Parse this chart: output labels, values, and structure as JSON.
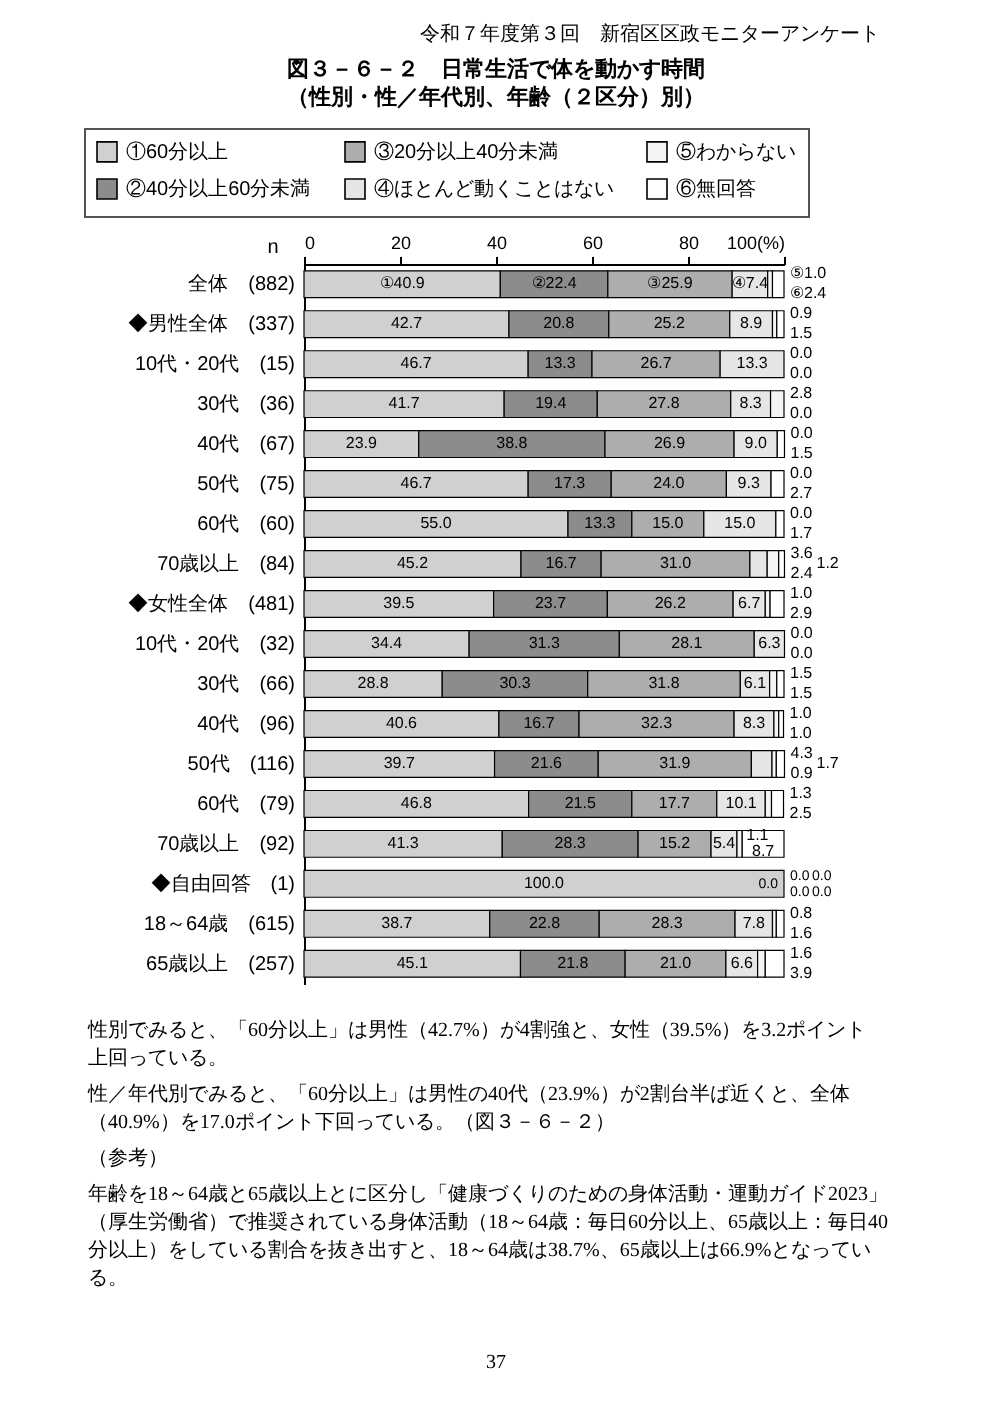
{
  "chart_data": {
    "type": "bar",
    "orientation": "horizontal",
    "stacked": true,
    "title": "図３－６－２　日常生活で体を動かす時間",
    "subtitle": "（性別・性／年代別、年齢（２区分）別）",
    "ylabel": "n",
    "categories": [
      "全体　(882)",
      "◆男性全体　(337)",
      "10代・20代　(15)",
      "30代　(36)",
      "40代　(67)",
      "50代　(75)",
      "60代　(60)",
      "70歳以上　(84)",
      "◆女性全体　(481)",
      "10代・20代　(32)",
      "30代　(66)",
      "40代　(96)",
      "50代　(116)",
      "60代　(79)",
      "70歳以上　(92)",
      "◆自由回答　(1)",
      "18～64歳　(615)",
      "65歳以上　(257)"
    ],
    "series": [
      {
        "name": "①60分以上",
        "color": "#d0d0d0",
        "values": [
          40.9,
          42.7,
          46.7,
          41.7,
          23.9,
          46.7,
          55.0,
          45.2,
          39.5,
          34.4,
          28.8,
          40.6,
          39.7,
          46.8,
          41.3,
          100.0,
          38.7,
          45.1
        ],
        "value_labels": [
          "①40.9",
          "42.7",
          "46.7",
          "41.7",
          "23.9",
          "46.7",
          "55.0",
          "45.2",
          "39.5",
          "34.4",
          "28.8",
          "40.6",
          "39.7",
          "46.8",
          "41.3",
          "100.0",
          "38.7",
          "45.1"
        ]
      },
      {
        "name": "②40分以上60分未満",
        "color": "#8c8c8c",
        "values": [
          22.4,
          20.8,
          13.3,
          19.4,
          38.8,
          17.3,
          13.3,
          16.7,
          23.7,
          31.3,
          30.3,
          16.7,
          21.6,
          21.5,
          28.3,
          0.0,
          22.8,
          21.8
        ],
        "value_labels": [
          "②22.4",
          "20.8",
          "13.3",
          "19.4",
          "38.8",
          "17.3",
          "13.3",
          "16.7",
          "23.7",
          "31.3",
          "30.3",
          "16.7",
          "21.6",
          "21.5",
          "28.3",
          "0.0",
          "22.8",
          "21.8"
        ]
      },
      {
        "name": "③20分以上40分未満",
        "color": "#adadad",
        "values": [
          25.9,
          25.2,
          26.7,
          27.8,
          26.9,
          24.0,
          15.0,
          31.0,
          26.2,
          28.1,
          31.8,
          32.3,
          31.9,
          17.7,
          15.2,
          0.0,
          28.3,
          21.0
        ],
        "value_labels": [
          "③25.9",
          "25.2",
          "26.7",
          "27.8",
          "26.9",
          "24.0",
          "15.0",
          "31.0",
          "26.2",
          "28.1",
          "31.8",
          "32.3",
          "31.9",
          "17.7",
          "15.2",
          "0.0",
          "28.3",
          "21.0"
        ]
      },
      {
        "name": "④ほとんど動くことはない",
        "color": "#e6e6e6",
        "values": [
          7.4,
          8.9,
          13.3,
          8.3,
          9.0,
          9.3,
          15.0,
          3.6,
          6.7,
          6.3,
          6.1,
          8.3,
          4.3,
          10.1,
          5.4,
          0.0,
          7.8,
          6.6
        ],
        "value_labels": [
          "④7.4",
          "8.9",
          "13.3",
          "8.3",
          "9.0",
          "9.3",
          "15.0",
          "3.6",
          "6.7",
          "6.3",
          "6.1",
          "8.3",
          "4.3",
          "10.1",
          "5.4",
          "0.0",
          "7.8",
          "6.6"
        ]
      },
      {
        "name": "⑤わからない",
        "color": "#f4f4f4",
        "values": [
          1.0,
          0.9,
          0.0,
          2.8,
          0.0,
          0.0,
          0.0,
          2.4,
          1.0,
          0.0,
          1.5,
          1.0,
          0.9,
          1.3,
          1.1,
          0.0,
          0.8,
          1.6
        ],
        "value_labels": [
          "⑤1.0",
          "0.9",
          "0.0",
          "2.8",
          "0.0",
          "0.0",
          "0.0",
          "2.4",
          "1.0",
          "0.0",
          "1.5",
          "1.0",
          "0.9",
          "1.3",
          "1.1",
          "0.0",
          "0.8",
          "1.6"
        ]
      },
      {
        "name": "⑥無回答",
        "color": "#ffffff",
        "values": [
          2.4,
          1.5,
          0.0,
          0.0,
          1.5,
          2.7,
          1.7,
          1.2,
          2.9,
          0.0,
          1.5,
          1.0,
          1.7,
          2.5,
          8.7,
          0.0,
          1.6,
          3.9
        ],
        "value_labels": [
          "⑥2.4",
          "1.5",
          "0.0",
          "0.0",
          "1.5",
          "2.7",
          "1.7",
          "1.2",
          "2.9",
          "0.0",
          "1.5",
          "1.0",
          "1.7",
          "2.5",
          "8.7",
          "0.0",
          "1.6",
          "3.9"
        ]
      }
    ],
    "xlim": [
      0,
      100
    ],
    "xticks": [
      0,
      20,
      40,
      60,
      80,
      {
        "value": 100,
        "label": "100(%)"
      }
    ],
    "legend": "top",
    "annotations": [
      "令和７年度第３回　新宿区区政モニターアンケート",
      "　性別でみると、「60分以上」は男性（42.7%）が4割強と、女性（39.5%）を3.2ポイント上回っている。",
      "　性／年代別でみると、「60分以上」は男性の40代（23.9%）が2割台半ば近くと、全体（40.9%）を17.0ポイント下回っている。（図３－６－２）",
      "（参考）",
      "　年齢を18～64歳と65歳以上とに区分し「健康づくりのための身体活動・運動ガイド2023」（厚生労働省）で推奨されている身体活動（18～64歳：毎日60分以上、65歳以上：毎日40分以上）をしている割合を抜き出すと、18～64歳は38.7%、65歳以上は66.9%となっている。",
      "37"
    ]
  }
}
